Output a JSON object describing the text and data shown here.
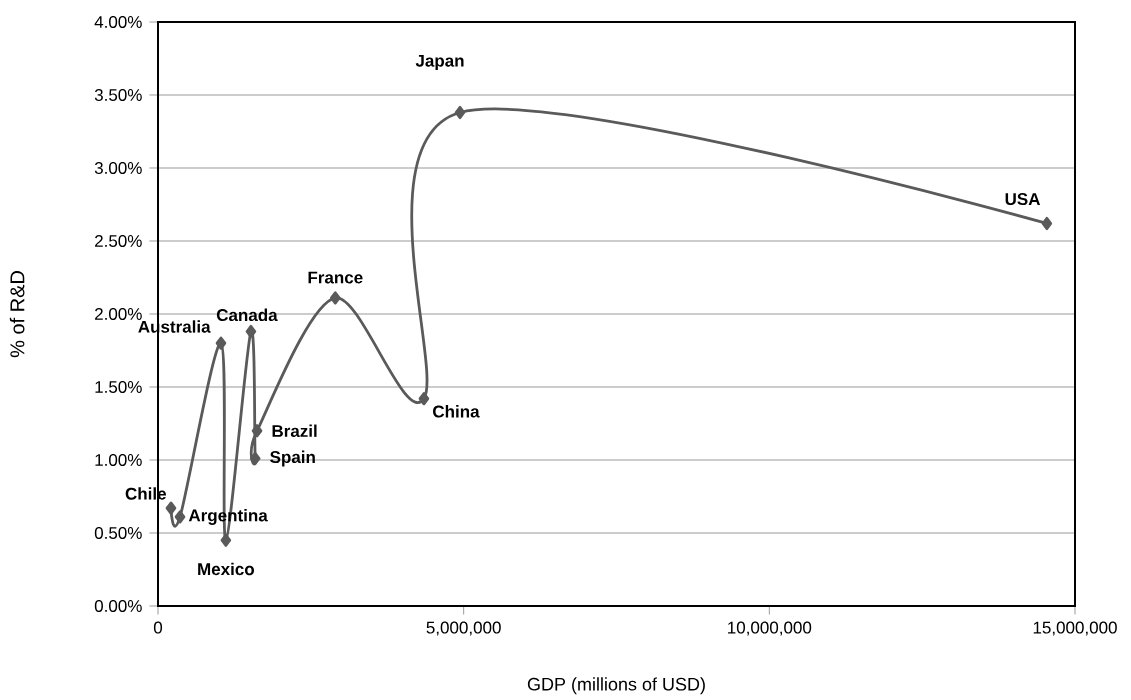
{
  "chart_data": {
    "type": "line",
    "xlabel": "GDP (millions of USD)",
    "ylabel": "% of R&D",
    "x": [
      212000,
      360000,
      1030000,
      1110000,
      1520000,
      1590000,
      1620000,
      2900000,
      4350000,
      4940000,
      14540000
    ],
    "series": [
      {
        "color": "#5a5a5a",
        "values": [
          0.67,
          0.61,
          1.8,
          0.45,
          1.88,
          1.01,
          1.2,
          2.11,
          1.42,
          3.38,
          2.62
        ]
      }
    ],
    "marker": "diamond",
    "line_style": "solid",
    "grid": "y",
    "xlim": [
      0,
      15000000
    ],
    "ylim": [
      0,
      4
    ],
    "xticks": [
      0,
      {
        "value": 5000000,
        "label": "5,000,000"
      },
      {
        "value": 10000000,
        "label": "10,000,000"
      },
      {
        "value": 15000000,
        "label": "15,000,000"
      }
    ],
    "yticks": [
      {
        "value": 0,
        "label": "0.00%"
      },
      {
        "value": 0.5,
        "label": "0.50%"
      },
      {
        "value": 1,
        "label": "1.00%"
      },
      {
        "value": 1.5,
        "label": "1.50%"
      },
      {
        "value": 2,
        "label": "2.00%"
      },
      {
        "value": 2.5,
        "label": "2.50%"
      },
      {
        "value": 3,
        "label": "3.00%"
      },
      {
        "value": 3.5,
        "label": "3.50%"
      },
      {
        "value": 4,
        "label": "4.00%"
      }
    ],
    "annotations": [
      {
        "text": "Chile",
        "x": 212000,
        "y": 0.67
      },
      {
        "text": "Argentina",
        "x": 360000,
        "y": 0.61
      },
      {
        "text": "Australia",
        "x": 1030000,
        "y": 1.8
      },
      {
        "text": "Mexico",
        "x": 1110000,
        "y": 0.45
      },
      {
        "text": "Canada",
        "x": 1520000,
        "y": 1.88
      },
      {
        "text": "Spain",
        "x": 1590000,
        "y": 1.01
      },
      {
        "text": "Brazil",
        "x": 1620000,
        "y": 1.2
      },
      {
        "text": "France",
        "x": 2900000,
        "y": 2.11
      },
      {
        "text": "China",
        "x": 4350000,
        "y": 1.42
      },
      {
        "text": "Japan",
        "x": 4940000,
        "y": 3.38
      },
      {
        "text": "USA",
        "x": 14540000,
        "y": 2.62
      }
    ]
  }
}
